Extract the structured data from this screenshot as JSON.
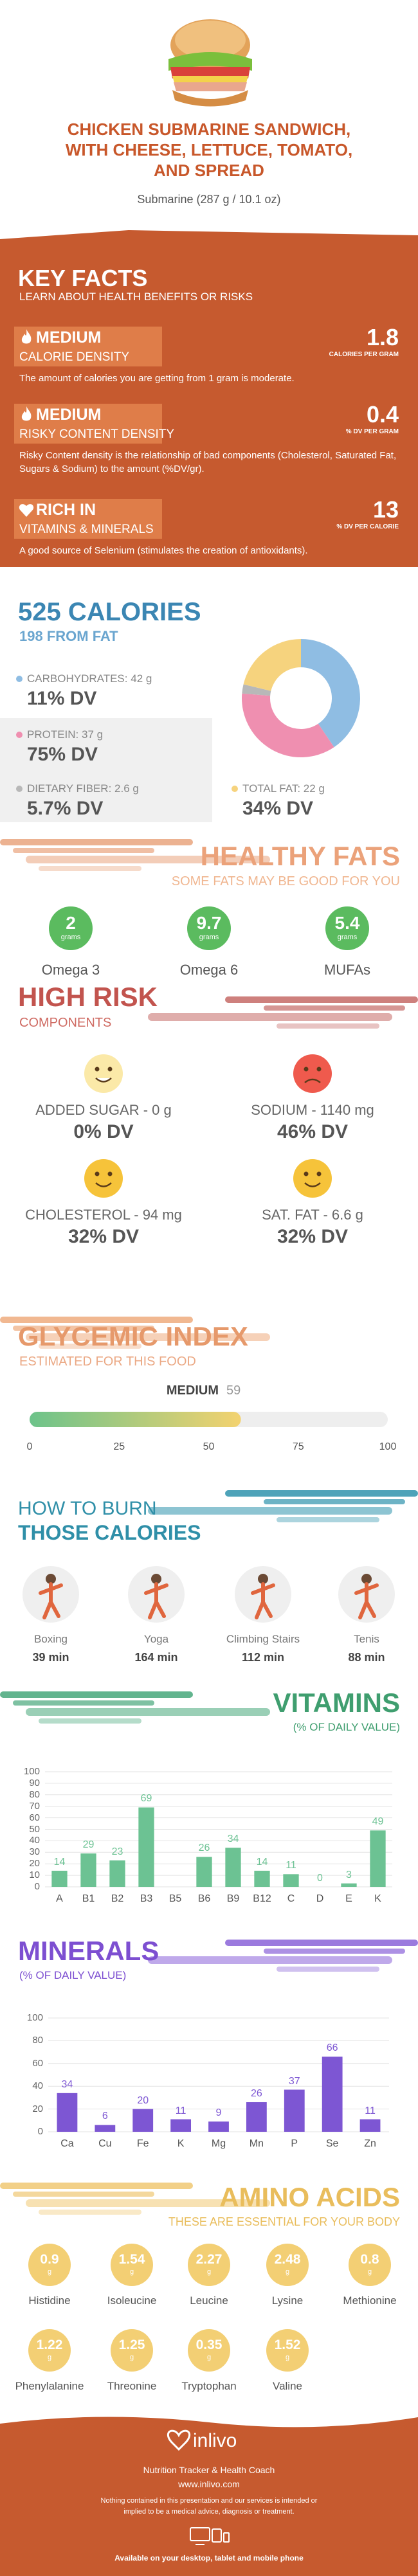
{
  "header": {
    "title": "CHICKEN SUBMARINE SANDWICH, WITH CHEESE, LETTUCE, TOMATO, AND SPREAD",
    "subtitle": "Submarine (287 g / 10.1 oz)"
  },
  "key_facts": {
    "title": "KEY FACTS",
    "subtitle": "LEARN ABOUT HEALTH BENEFITS OR RISKS",
    "items": [
      {
        "level": "MEDIUM",
        "label": "CALORIE DENSITY",
        "value": "1.8",
        "unit": "CALORIES PER GRAM",
        "description": "The amount of calories you are getting from 1 gram is moderate."
      },
      {
        "level": "MEDIUM",
        "label": "RISKY CONTENT DENSITY",
        "value": "0.4",
        "unit": "% DV PER GRAM",
        "description": "Risky Content density is the relationship of bad components (Cholesterol, Saturated Fat, Sugars & Sodium) to the amount (%DV/gr)."
      },
      {
        "level": "RICH  IN",
        "label": "VITAMINS & MINERALS",
        "value": "13",
        "unit": "% DV PER CALORIE",
        "description": "A good source of Selenium (stimulates the creation of antioxidants)."
      }
    ]
  },
  "healthy_fats": {
    "title": "HEALTHY FATS",
    "subtitle": "SOME FATS MAY BE GOOD FOR YOU",
    "items": [
      {
        "value": "2",
        "unit": "grams",
        "name": "Omega 3"
      },
      {
        "value": "9.7",
        "unit": "grams",
        "name": "Omega 6"
      },
      {
        "value": "5.4",
        "unit": "grams",
        "name": "MUFAs"
      }
    ]
  },
  "high_risk": {
    "title": "HIGH RISK",
    "subtitle": "COMPONENTS",
    "items": [
      {
        "label": "ADDED SUGAR - 0 g",
        "dv": "0% DV",
        "face": "good"
      },
      {
        "label": "SODIUM - 1140 mg",
        "dv": "46% DV",
        "face": "bad"
      },
      {
        "label": "CHOLESTEROL - 94 mg",
        "dv": "32% DV",
        "face": "fair"
      },
      {
        "label": "SAT. FAT - 6.6 g",
        "dv": "32% DV",
        "face": "fair"
      }
    ]
  },
  "burn": {
    "title": "HOW TO BURN",
    "subtitle": "THOSE CALORIES",
    "items": [
      {
        "name": "Boxing",
        "time": "39 min"
      },
      {
        "name": "Yoga",
        "time": "164 min"
      },
      {
        "name": "Climbing Stairs",
        "time": "112 min"
      },
      {
        "name": "Tenis",
        "time": "88 min"
      }
    ]
  },
  "amino_acids": {
    "title": "AMINO ACIDS",
    "subtitle": "THESE ARE ESSENTIAL FOR YOUR BODY",
    "items": [
      {
        "value": "0.9",
        "unit": "g",
        "name": "Histidine"
      },
      {
        "value": "1.54",
        "unit": "g",
        "name": "Isoleucine"
      },
      {
        "value": "2.27",
        "unit": "g",
        "name": "Leucine"
      },
      {
        "value": "2.48",
        "unit": "g",
        "name": "Lysine"
      },
      {
        "value": "0.8",
        "unit": "g",
        "name": "Methionine"
      },
      {
        "value": "1.22",
        "unit": "g",
        "name": "Phenylalanine"
      },
      {
        "value": "1.25",
        "unit": "g",
        "name": "Threonine"
      },
      {
        "value": "0.35",
        "unit": "g",
        "name": "Tryptophan"
      },
      {
        "value": "1.52",
        "unit": "g",
        "name": "Valine"
      }
    ]
  },
  "footer": {
    "brand": "inlivo",
    "tagline": "Nutrition Tracker & Health Coach",
    "url": "www.inlivo.com",
    "disclaimer": "Nothing contained in this presentation and our services is intended or implied to be a medical advice, diagnosis or treatment.",
    "availability": "Available on your desktop, tablet and mobile phone"
  },
  "chart_data": [
    {
      "type": "pie",
      "title": "525 CALORIES",
      "subtitle": "198 FROM FAT",
      "categories": [
        "CARBOHYDRATES:",
        "PROTEIN:",
        "DIETARY FIBER:",
        "TOTAL FAT:"
      ],
      "values": [
        42,
        37,
        2.6,
        22
      ],
      "value_labels": [
        "42 g",
        "37 g",
        "2.6 g",
        "22 g"
      ],
      "dv_labels": [
        "11% DV",
        "75% DV",
        "5.7% DV",
        "34% DV"
      ],
      "colors": [
        "#8fbde3",
        "#ef8fb0",
        "#b8b8b8",
        "#f6d37e"
      ]
    },
    {
      "type": "bar",
      "title": "VITAMINS",
      "subtitle": "(% OF DAILY VALUE)",
      "categories": [
        "A",
        "B1",
        "B2",
        "B3",
        "B5",
        "B6",
        "B9",
        "B12",
        "C",
        "D",
        "E",
        "K"
      ],
      "values": [
        14,
        29,
        23,
        69,
        null,
        26,
        34,
        14,
        11,
        0,
        3,
        49
      ],
      "color": "#6cc293",
      "ylim": [
        0,
        100
      ],
      "yticks": [
        0,
        10,
        20,
        30,
        40,
        50,
        60,
        70,
        80,
        90,
        100
      ],
      "grid": true
    },
    {
      "type": "bar",
      "title": "MINERALS",
      "subtitle": "(% OF DAILY VALUE)",
      "categories": [
        "Ca",
        "Cu",
        "Fe",
        "K",
        "Mg",
        "Mn",
        "P",
        "Se",
        "Zn"
      ],
      "values": [
        34,
        6,
        20,
        11,
        9,
        26,
        37,
        66,
        11
      ],
      "color": "#7d56d3",
      "ylim": [
        0,
        100
      ],
      "yticks": [
        0,
        20,
        40,
        60,
        80,
        100
      ],
      "grid": true
    },
    {
      "type": "gauge",
      "title": "GLYCEMIC INDEX",
      "subtitle": "ESTIMATED FOR THIS FOOD",
      "label": "MEDIUM",
      "value": 59,
      "xlim": [
        0,
        100
      ],
      "xticks": [
        0,
        25,
        50,
        75,
        100
      ]
    }
  ]
}
